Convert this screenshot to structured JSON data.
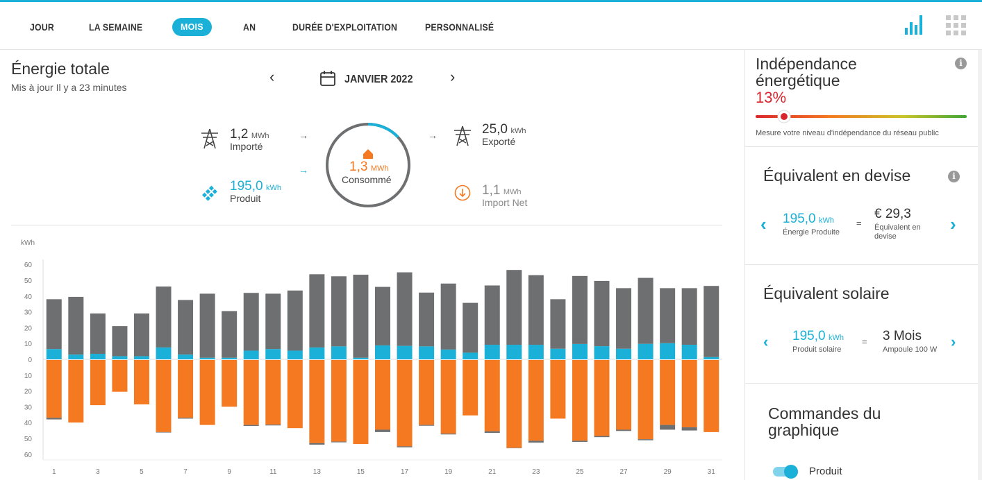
{
  "nav": {
    "tabs": [
      {
        "label": "JOUR",
        "active": false
      },
      {
        "label": "LA SEMAINE",
        "active": false
      },
      {
        "label": "MOIS",
        "active": true
      },
      {
        "label": "AN",
        "active": false
      },
      {
        "label": "DURÉE D'EXPLOITATION",
        "active": false
      },
      {
        "label": "PERSONNALISÉ",
        "active": false
      }
    ],
    "icons": [
      "bar-chart-icon",
      "grid-icon"
    ]
  },
  "header": {
    "title": "Énergie totale",
    "updated": "Mis à jour Il y a 23 minutes",
    "period": "JANVIER 2022"
  },
  "flow": {
    "imported": {
      "value": "1,2",
      "unit": "MWh",
      "label": "Importé"
    },
    "produced": {
      "value": "195,0",
      "unit": "kWh",
      "label": "Produit"
    },
    "consumed": {
      "value": "1,3",
      "unit": "MWh",
      "label": "Consommé",
      "ring_fraction": 0.13
    },
    "exported": {
      "value": "25,0",
      "unit": "kWh",
      "label": "Exporté"
    },
    "net_import": {
      "value": "1,1",
      "unit": "MWh",
      "label": "Import Net"
    }
  },
  "colors": {
    "accent": "#1ab0d8",
    "grid_gray": "#6e6f71",
    "orange": "#f47920",
    "red": "#d9262e"
  },
  "chart_data": {
    "type": "bar",
    "ylabel": "kWh",
    "ylim": [
      -60,
      60
    ],
    "y_ticks_top": [
      "60",
      "50",
      "40",
      "30",
      "20",
      "10",
      "0"
    ],
    "y_ticks_bottom": [
      "10",
      "20",
      "30",
      "40",
      "50",
      "60"
    ],
    "x_tick_labels": [
      "1",
      "3",
      "5",
      "7",
      "9",
      "11",
      "13",
      "15",
      "17",
      "19",
      "21",
      "23",
      "25",
      "27",
      "29",
      "31"
    ],
    "categories": [
      1,
      2,
      3,
      4,
      5,
      6,
      7,
      8,
      9,
      10,
      11,
      12,
      13,
      14,
      15,
      16,
      17,
      18,
      19,
      20,
      21,
      22,
      23,
      24,
      25,
      26,
      27,
      28,
      29,
      30,
      31
    ],
    "series": [
      {
        "key": "produced_self",
        "values": [
          6.5,
          3,
          3.5,
          2,
          2,
          7.5,
          3,
          1,
          1,
          5.5,
          6.5,
          5.5,
          7.5,
          8.2,
          1,
          8.8,
          8.5,
          8.2,
          6.2,
          4.2,
          9.2,
          9.2,
          9.2,
          6.7,
          9.7,
          8.3,
          6.7,
          9.8,
          10.2,
          9.2,
          1.4
        ]
      },
      {
        "key": "imported",
        "values": [
          31.5,
          36.5,
          25.5,
          19,
          27,
          38.5,
          34.5,
          40.5,
          29.5,
          36.5,
          35,
          38,
          46.3,
          44.3,
          52.5,
          37,
          46.5,
          34,
          41.7,
          31.5,
          37.5,
          47.3,
          44,
          31.3,
          43,
          41.3,
          38.3,
          41.7,
          34.8,
          35.8,
          45
        ]
      },
      {
        "key": "consumption",
        "values": [
          37,
          40,
          29,
          20.5,
          28.5,
          46,
          37,
          41.5,
          30,
          41.5,
          41.3,
          43.5,
          53,
          52,
          53.5,
          44.5,
          55,
          41.5,
          47,
          35.5,
          45.5,
          56,
          51.5,
          37.5,
          51.5,
          48.5,
          44.5,
          50.5,
          41.5,
          43,
          46
        ]
      },
      {
        "key": "exported",
        "values": [
          1,
          0,
          0,
          0,
          0,
          0.3,
          0.5,
          0,
          0,
          0.6,
          0.5,
          0,
          1,
          0.5,
          0,
          1.5,
          0.7,
          0.5,
          0.5,
          0,
          1,
          0.2,
          1.2,
          0,
          0.7,
          0.7,
          0.8,
          0.7,
          3,
          2,
          0
        ]
      }
    ]
  },
  "right": {
    "independence": {
      "title": "Indépendance énergétique",
      "percent": "13%",
      "fraction": 0.13,
      "note": "Mesure votre niveau d'indépendance du réseau public"
    },
    "currency": {
      "title": "Équivalent en devise",
      "left_value": "195,0",
      "left_unit": "kWh",
      "left_label": "Énergie Produite",
      "eq": "=",
      "right_value": "€ 29,3",
      "right_label": "Équivalent en devise"
    },
    "solar": {
      "title": "Équivalent solaire",
      "left_value": "195,0",
      "left_unit": "kWh",
      "left_label": "Produit solaire",
      "eq": "=",
      "right_value": "3 Mois",
      "right_label": "Ampoule 100 W"
    },
    "controls": {
      "title": "Commandes du graphique",
      "toggle_label": "Produit"
    }
  }
}
